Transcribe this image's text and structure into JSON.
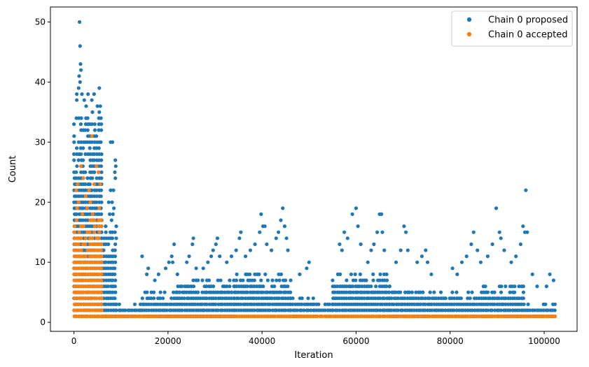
{
  "chart_data": {
    "type": "scatter",
    "title": "",
    "xlabel": "Iteration",
    "ylabel": "Count",
    "xlim": [
      -5000,
      107000
    ],
    "ylim": [
      -1.5,
      52.5
    ],
    "xticks": [
      0,
      20000,
      40000,
      60000,
      80000,
      100000
    ],
    "xtick_labels": [
      "0",
      "20000",
      "40000",
      "60000",
      "80000",
      "100000"
    ],
    "yticks": [
      0,
      10,
      20,
      30,
      40,
      50
    ],
    "ytick_labels": [
      "0",
      "10",
      "20",
      "30",
      "40",
      "50"
    ],
    "grid": false,
    "legend_position": "top-right",
    "series": [
      {
        "name": "Chain 0 proposed",
        "color": "#1f77b4",
        "note_shape": "dense column band from each segment's x range, integer counts from y_min to y_max",
        "bands": [
          {
            "x": [
              0,
              5800
            ],
            "y": [
              1,
              35
            ]
          },
          {
            "x": [
              5800,
              9000
            ],
            "y": [
              1,
              17
            ]
          },
          {
            "x": [
              9000,
              14000
            ],
            "y": [
              1,
              3
            ]
          },
          {
            "x": [
              14000,
              22000
            ],
            "y": [
              1,
              5
            ]
          },
          {
            "x": [
              22000,
              34000
            ],
            "y": [
              1,
              7
            ]
          },
          {
            "x": [
              34000,
              46000
            ],
            "y": [
              2,
              8
            ]
          },
          {
            "x": [
              46000,
              51000
            ],
            "y": [
              1,
              4
            ]
          },
          {
            "x": [
              51000,
              55000
            ],
            "y": [
              2,
              3
            ]
          },
          {
            "x": [
              55000,
              67000
            ],
            "y": [
              2,
              8
            ]
          },
          {
            "x": [
              67000,
              77000
            ],
            "y": [
              1,
              6
            ]
          },
          {
            "x": [
              77000,
              87000
            ],
            "y": [
              1,
              5
            ]
          },
          {
            "x": [
              87000,
              96000
            ],
            "y": [
              1,
              6
            ]
          },
          {
            "x": [
              96000,
              102500
            ],
            "y": [
              1,
              3
            ]
          }
        ],
        "points": [
          {
            "x": 1200,
            "y": 50
          },
          {
            "x": 1300,
            "y": 46
          },
          {
            "x": 1400,
            "y": 43
          },
          {
            "x": 1500,
            "y": 42
          },
          {
            "x": 1100,
            "y": 41
          },
          {
            "x": 1300,
            "y": 40
          },
          {
            "x": 600,
            "y": 38
          },
          {
            "x": 1000,
            "y": 39
          },
          {
            "x": 1700,
            "y": 38
          },
          {
            "x": 3000,
            "y": 38
          },
          {
            "x": 4300,
            "y": 38
          },
          {
            "x": 5400,
            "y": 39
          },
          {
            "x": 2200,
            "y": 37
          },
          {
            "x": 3800,
            "y": 37
          },
          {
            "x": 5000,
            "y": 36
          },
          {
            "x": 600,
            "y": 37
          },
          {
            "x": 2600,
            "y": 36
          },
          {
            "x": 5600,
            "y": 36
          },
          {
            "x": 7800,
            "y": 30
          },
          {
            "x": 8200,
            "y": 30
          },
          {
            "x": 8800,
            "y": 27
          },
          {
            "x": 8900,
            "y": 26
          },
          {
            "x": 8700,
            "y": 25
          },
          {
            "x": 8800,
            "y": 24
          },
          {
            "x": 7800,
            "y": 22
          },
          {
            "x": 8400,
            "y": 22
          },
          {
            "x": 7400,
            "y": 20
          },
          {
            "x": 8100,
            "y": 20
          },
          {
            "x": 8500,
            "y": 19
          },
          {
            "x": 7600,
            "y": 18
          },
          {
            "x": 8300,
            "y": 18
          },
          {
            "x": 9000,
            "y": 16
          },
          {
            "x": 8000,
            "y": 17
          },
          {
            "x": 9000,
            "y": 14
          },
          {
            "x": 14500,
            "y": 11
          },
          {
            "x": 15800,
            "y": 9
          },
          {
            "x": 15500,
            "y": 8
          },
          {
            "x": 17200,
            "y": 7
          },
          {
            "x": 18000,
            "y": 8
          },
          {
            "x": 19500,
            "y": 9
          },
          {
            "x": 20200,
            "y": 10
          },
          {
            "x": 20800,
            "y": 11
          },
          {
            "x": 21000,
            "y": 10
          },
          {
            "x": 21300,
            "y": 13
          },
          {
            "x": 22000,
            "y": 8
          },
          {
            "x": 24000,
            "y": 10
          },
          {
            "x": 24500,
            "y": 11
          },
          {
            "x": 25200,
            "y": 13
          },
          {
            "x": 25400,
            "y": 14
          },
          {
            "x": 26000,
            "y": 9
          },
          {
            "x": 27500,
            "y": 9
          },
          {
            "x": 28500,
            "y": 10
          },
          {
            "x": 29200,
            "y": 11
          },
          {
            "x": 29600,
            "y": 12
          },
          {
            "x": 30200,
            "y": 13
          },
          {
            "x": 30500,
            "y": 14
          },
          {
            "x": 31000,
            "y": 11
          },
          {
            "x": 32500,
            "y": 10
          },
          {
            "x": 33500,
            "y": 11
          },
          {
            "x": 34500,
            "y": 12
          },
          {
            "x": 35200,
            "y": 14
          },
          {
            "x": 35500,
            "y": 15
          },
          {
            "x": 36500,
            "y": 11
          },
          {
            "x": 37500,
            "y": 12
          },
          {
            "x": 38500,
            "y": 13
          },
          {
            "x": 39500,
            "y": 15
          },
          {
            "x": 39800,
            "y": 18
          },
          {
            "x": 40200,
            "y": 16
          },
          {
            "x": 40600,
            "y": 16
          },
          {
            "x": 41000,
            "y": 13
          },
          {
            "x": 42000,
            "y": 12
          },
          {
            "x": 43000,
            "y": 14
          },
          {
            "x": 43500,
            "y": 15
          },
          {
            "x": 44000,
            "y": 17
          },
          {
            "x": 44400,
            "y": 19
          },
          {
            "x": 44800,
            "y": 16
          },
          {
            "x": 45200,
            "y": 14
          },
          {
            "x": 45500,
            "y": 12
          },
          {
            "x": 48000,
            "y": 8
          },
          {
            "x": 49500,
            "y": 9
          },
          {
            "x": 50000,
            "y": 10
          },
          {
            "x": 56500,
            "y": 13
          },
          {
            "x": 57000,
            "y": 12
          },
          {
            "x": 57500,
            "y": 15
          },
          {
            "x": 58200,
            "y": 14
          },
          {
            "x": 59200,
            "y": 18
          },
          {
            "x": 60000,
            "y": 19
          },
          {
            "x": 60400,
            "y": 16
          },
          {
            "x": 61000,
            "y": 13
          },
          {
            "x": 62500,
            "y": 10
          },
          {
            "x": 63200,
            "y": 12
          },
          {
            "x": 63800,
            "y": 13
          },
          {
            "x": 64500,
            "y": 15
          },
          {
            "x": 65000,
            "y": 18
          },
          {
            "x": 65400,
            "y": 18
          },
          {
            "x": 65600,
            "y": 15
          },
          {
            "x": 66000,
            "y": 12
          },
          {
            "x": 68500,
            "y": 10
          },
          {
            "x": 69500,
            "y": 12
          },
          {
            "x": 70200,
            "y": 16
          },
          {
            "x": 70600,
            "y": 15
          },
          {
            "x": 71000,
            "y": 12
          },
          {
            "x": 73000,
            "y": 10
          },
          {
            "x": 74000,
            "y": 11
          },
          {
            "x": 74800,
            "y": 12
          },
          {
            "x": 75200,
            "y": 10
          },
          {
            "x": 76000,
            "y": 8
          },
          {
            "x": 80500,
            "y": 9
          },
          {
            "x": 81500,
            "y": 8
          },
          {
            "x": 82500,
            "y": 10
          },
          {
            "x": 83500,
            "y": 11
          },
          {
            "x": 84500,
            "y": 13
          },
          {
            "x": 85000,
            "y": 15
          },
          {
            "x": 85800,
            "y": 12
          },
          {
            "x": 86500,
            "y": 10
          },
          {
            "x": 88000,
            "y": 11
          },
          {
            "x": 89000,
            "y": 13
          },
          {
            "x": 89800,
            "y": 19
          },
          {
            "x": 90500,
            "y": 15
          },
          {
            "x": 90800,
            "y": 14
          },
          {
            "x": 91500,
            "y": 12
          },
          {
            "x": 93000,
            "y": 10
          },
          {
            "x": 94000,
            "y": 11
          },
          {
            "x": 95000,
            "y": 13
          },
          {
            "x": 95500,
            "y": 16
          },
          {
            "x": 95900,
            "y": 15
          },
          {
            "x": 96100,
            "y": 22
          },
          {
            "x": 96400,
            "y": 15
          },
          {
            "x": 97500,
            "y": 8
          },
          {
            "x": 98500,
            "y": 6
          },
          {
            "x": 100500,
            "y": 6
          },
          {
            "x": 101200,
            "y": 8
          },
          {
            "x": 102000,
            "y": 7
          }
        ]
      },
      {
        "name": "Chain 0 accepted",
        "color": "#ff7f0e",
        "bands": [
          {
            "x": [
              0,
              6000
            ],
            "y": [
              1,
              17
            ]
          },
          {
            "x": [
              6000,
              102500
            ],
            "y": [
              1,
              1
            ]
          }
        ],
        "points": [
          {
            "x": 500,
            "y": 22
          },
          {
            "x": 1000,
            "y": 20
          },
          {
            "x": 1500,
            "y": 26
          },
          {
            "x": 2000,
            "y": 24
          },
          {
            "x": 2500,
            "y": 21
          },
          {
            "x": 3200,
            "y": 22
          },
          {
            "x": 3800,
            "y": 31
          },
          {
            "x": 4300,
            "y": 23
          },
          {
            "x": 4800,
            "y": 26
          },
          {
            "x": 5200,
            "y": 25
          },
          {
            "x": 5600,
            "y": 23
          },
          {
            "x": 700,
            "y": 19
          },
          {
            "x": 1800,
            "y": 18
          },
          {
            "x": 2800,
            "y": 19
          },
          {
            "x": 4000,
            "y": 18
          },
          {
            "x": 5400,
            "y": 19
          },
          {
            "x": 800,
            "y": 23
          },
          {
            "x": 3500,
            "y": 20
          }
        ]
      }
    ]
  }
}
